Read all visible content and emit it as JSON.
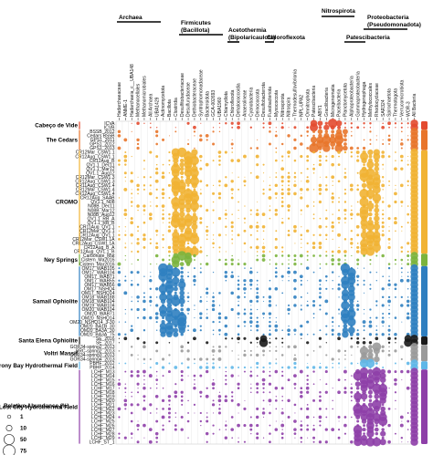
{
  "phylum_headers": [
    {
      "key": "archaea",
      "text": "Archaea"
    },
    {
      "key": "firmicutes",
      "text": "Firmicutes"
    },
    {
      "key": "firmicutes-alt",
      "text": "(Bacillota)"
    },
    {
      "key": "acetothermia",
      "text": "Acetothermia"
    },
    {
      "key": "acetothermia-alt",
      "text": "(Bipolaricaulota)"
    },
    {
      "key": "chloroflexota",
      "text": "Chloroflexota"
    },
    {
      "key": "nitrospirota",
      "text": "Nitrospirota"
    },
    {
      "key": "patescibacteria",
      "text": "Patescibacteria"
    },
    {
      "key": "proteobacteria",
      "text": "Proteobacteria"
    },
    {
      "key": "proteobacteria-alt",
      "text": "(Pseudomonadota)"
    }
  ],
  "taxa": [
    "Hadarchaeaceae",
    "ANME-1",
    "Hadarchaeia_c__UBA148",
    "Methanocellales",
    "Methanomicrobiales",
    "All Archaea",
    "UBA1429",
    "Actinomycetota",
    "Bacillota",
    "Clostridia",
    "Desulfitobacteriaceae",
    "Desulfurudaceae",
    "Dethiobacteraceae",
    "Syntrophomonadaceae",
    "Bacteroidota",
    "GCA-002693",
    "UBA1960",
    "Chlamydiota",
    "Chloroflexota",
    "Dehalococcoidia",
    "Anaerolineae",
    "Cyanobacteria",
    "Deinococcota",
    "Desulfobacterota",
    "Fusobacteriota",
    "Myxococcota",
    "Nitrospirota",
    "Nitrospira",
    "Thermodesulfovibrionia",
    "NPL-UPA2",
    "Omnitrophota",
    "Patescibacteria",
    "ABY1",
    "Gracilibacteria",
    "Microgenomatia",
    "Paceibacteria",
    "Planctomycetota",
    "Alphaproteobacteria",
    "Gammaproteobacteria",
    "Hydrogenophaga",
    "Methylococcales",
    "Rhodocyclaceae",
    "SAR324",
    "Spirochaetota",
    "Thermotogota",
    "Verrucomicrobiota",
    "WOR-3",
    "All Bacteria"
  ],
  "groups": [
    {
      "name": "Cabeço de Vide",
      "color": "#e34a2f",
      "samples": [
        "ICVA",
        "ICVB"
      ]
    },
    {
      "name": "The Cedars",
      "color": "#e8752b",
      "samples": [
        "BSSB_2012",
        "Cedars BS5B",
        "GPS1_2011",
        "GPS1_2012",
        "GPS1_2013"
      ]
    },
    {
      "name": "CROMO",
      "color": "#f1b333",
      "samples": [
        "CR12Mar_CSW1.1",
        "CR12Aug_CSW1.1",
        "CR12Aug_B",
        "QV1.1_Dec11",
        "QV1.1_Mar12",
        "QV1.1_Aug12",
        "CR12Mar_CSW1.3",
        "CR12Aug_CSW1.3",
        "CR11Aug_CSW1.4",
        "CR12Mar_CSW1.4",
        "CR12Aug_CSW1.4",
        "CR12Aug_SAAB",
        "QV1.1_N08",
        "N08B_Dec11",
        "N08B_Mar12",
        "N08B_Aug12",
        "QV1.1_RB_A",
        "QV1.1_RB_B",
        "CR11Aug_QV1.1",
        "CR12Mar_QV1.1",
        "CR12Aug_QV1.1",
        "CR12Mar_CSW1.1A",
        "CR12Aug_CSW1.1A",
        "CR12Aug_B_A",
        "CR12Aug_QV1.1_B"
      ]
    },
    {
      "name": "Ney Springs",
      "color": "#7bb43d",
      "samples": [
        "Carbonate_Mat",
        "Cistern_Ma2016",
        "Cistern_Mar2016"
      ]
    },
    {
      "name": "Samail Ophiolite",
      "color": "#2f7fc0",
      "samples": [
        "OM17_WAB105",
        "OM17_WAB104",
        "OM17_WAB71",
        "OM17_WAB55",
        "OM17_WAB56",
        "OM17_NSHQ4",
        "OM17_NSHQ14",
        "OM18_WAB188",
        "OM18_WAB104",
        "OM19_WAB104",
        "OM20_WAB104",
        "OM20_WAB71",
        "OM20_NSHQ14",
        "OM20_NSHQ14_3-30",
        "OM20_BA1B_30",
        "OM20_BA3A_30",
        "OM20_BA3A_75"
      ]
    },
    {
      "name": "Santa Elena Ophiolite",
      "color": "#1a1a1a",
      "samples": [
        "SE_2016",
        "SE_2017"
      ]
    },
    {
      "name": "Voltri Massif",
      "color": "#9a9a9a",
      "samples": [
        "GOR34-spring2_2013",
        "BRC-spring2_2013",
        "GOR34-spring3_2013",
        "GOR34-spring4_2013"
      ]
    },
    {
      "name": "Prony Bay Hydrothermal Field",
      "color": "#5fb7e8",
      "samples": [
        "PBHF_2012",
        "PBHF_2014"
      ]
    },
    {
      "name": "Lost City Hydrothermal Field",
      "color": "#8e3fa8",
      "samples": [
        "LCHF_M13",
        "LCHF_M14",
        "LCHF_M15",
        "LCHF_M16",
        "LCHF_M17",
        "LCHF_M18",
        "LCHF_M19",
        "LCHF_M20",
        "LCHF_M21",
        "LCHF_M22",
        "LCHF_M23",
        "LCHF_M24",
        "LCHF_M25",
        "LCHF_M26",
        "LCHF_M27",
        "LCHF_M28",
        "LCHF_M29",
        "LCHF_ST_1"
      ]
    }
  ],
  "legend": {
    "title": "Relative Abundance (%)",
    "items": [
      {
        "label": "1",
        "value": 1
      },
      {
        "label": "10",
        "value": 10
      },
      {
        "label": "50",
        "value": 50
      },
      {
        "label": "75",
        "value": 75
      }
    ]
  }
}
